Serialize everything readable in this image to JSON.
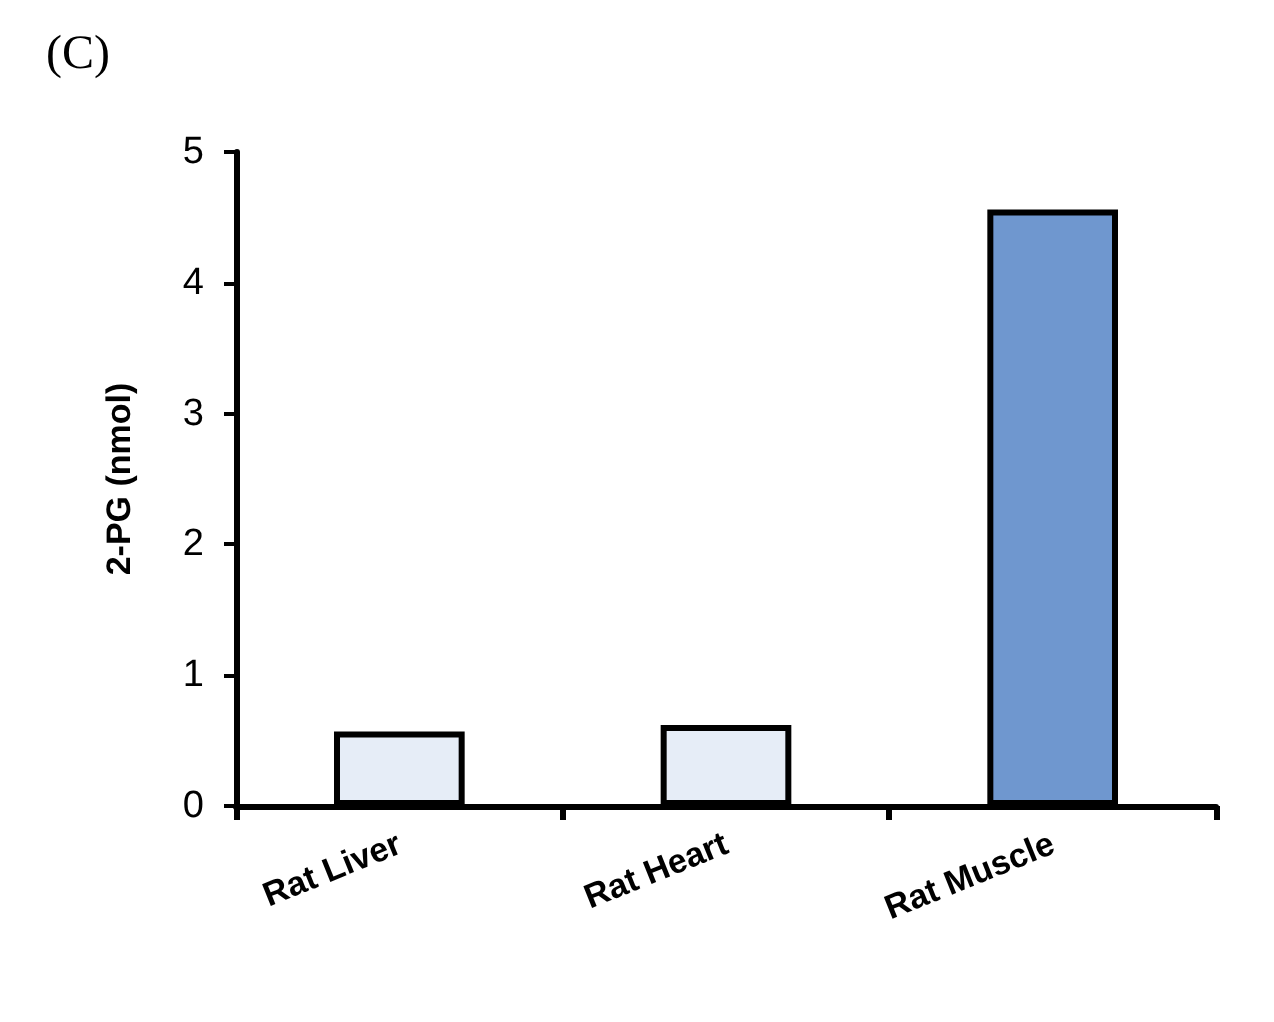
{
  "chart_data": {
    "type": "bar",
    "title": "(C)",
    "ylabel": "2-PG (nmol)",
    "categories": [
      "Rat Liver",
      "Rat Heart",
      "Rat Muscle"
    ],
    "values": [
      0.57,
      0.62,
      4.56
    ],
    "colors": [
      "#e6edf7",
      "#e6edf7",
      "#6f97cf"
    ],
    "ylim": [
      0,
      5
    ],
    "yticks": [
      0,
      1,
      2,
      3,
      4,
      5
    ],
    "grid": false
  }
}
